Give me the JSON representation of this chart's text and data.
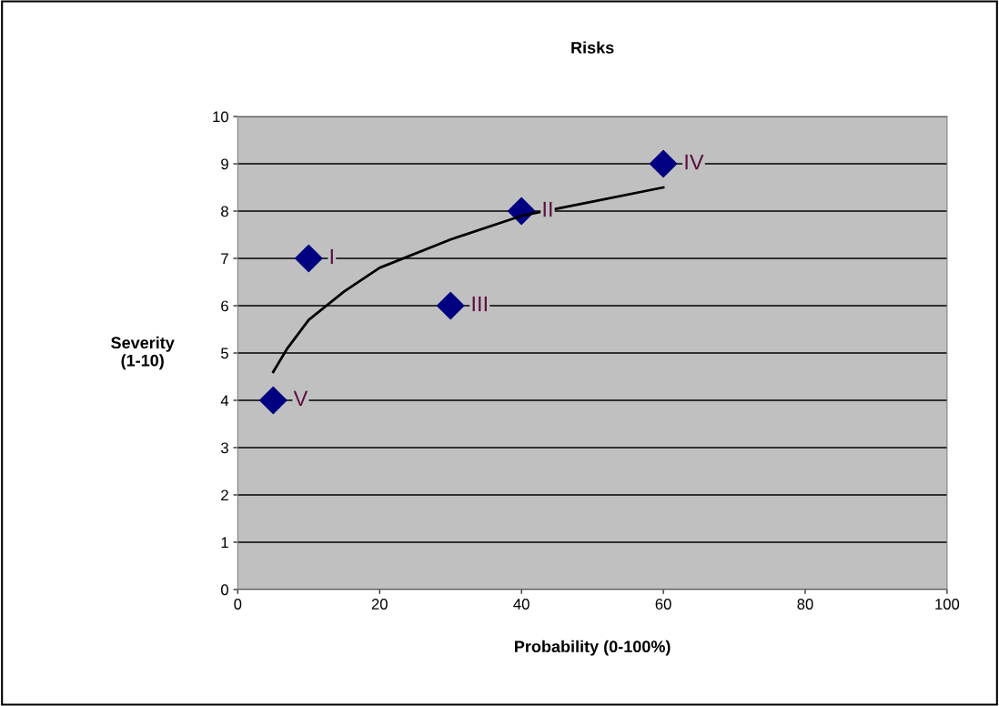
{
  "chart_data": {
    "type": "scatter",
    "title": "Risks",
    "xlabel": "Probability (0-100%)",
    "ylabel": "Severity\n(1-10)",
    "xlim": [
      0,
      100
    ],
    "xticks": [
      0,
      20,
      40,
      60,
      80,
      100
    ],
    "ylim": [
      0,
      10
    ],
    "yticks": [
      0,
      1,
      2,
      3,
      4,
      5,
      6,
      7,
      8,
      9,
      10
    ],
    "grid": "y",
    "series": [
      {
        "color": "#000080",
        "marker": "diamond",
        "x": [
          10,
          40,
          30,
          60,
          5
        ],
        "values": [
          7,
          8,
          6,
          9,
          4
        ]
      },
      {
        "type": "line",
        "color": "#000000",
        "line_style": "solid",
        "x": [
          5,
          7,
          10,
          15,
          20,
          30,
          40,
          50,
          60
        ],
        "values": [
          4.6,
          5.1,
          5.7,
          6.3,
          6.8,
          7.4,
          7.9,
          8.2,
          8.5
        ]
      }
    ],
    "annotations": [
      {
        "text": "I",
        "x": 10,
        "y": 7
      },
      {
        "text": "II",
        "x": 40,
        "y": 8
      },
      {
        "text": "III",
        "x": 30,
        "y": 6
      },
      {
        "text": "IV",
        "x": 60,
        "y": 9
      },
      {
        "text": "V",
        "x": 5,
        "y": 4
      }
    ]
  }
}
